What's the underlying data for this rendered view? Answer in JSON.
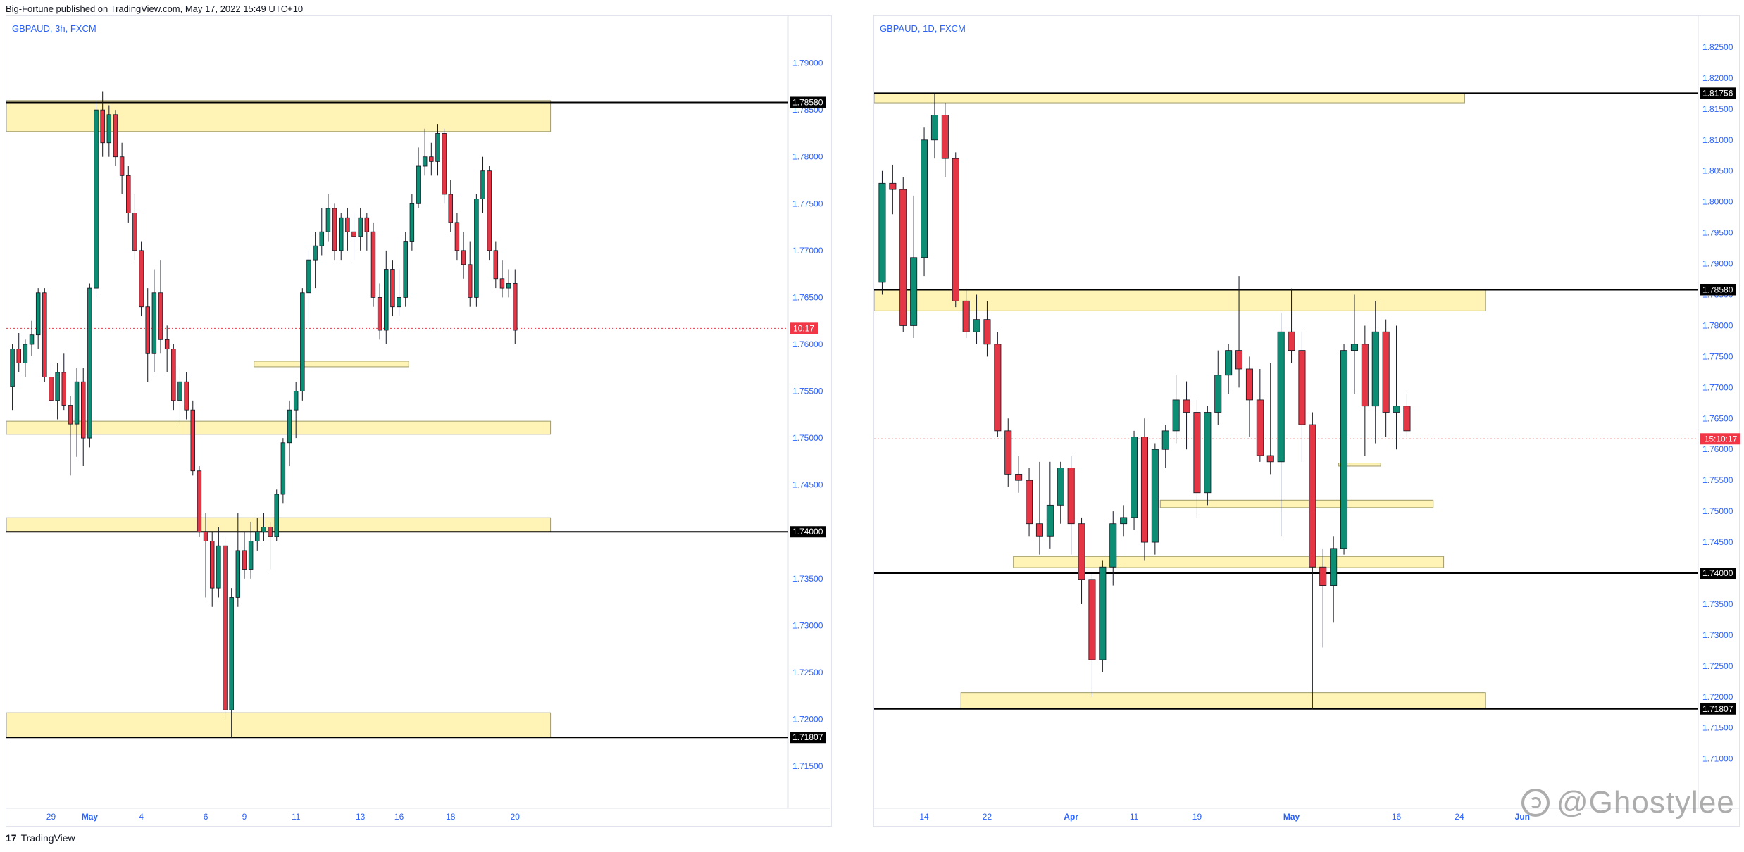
{
  "header": {
    "text": "Big-Fortune published on TradingView.com, May 17, 2022 15:49 UTC+10"
  },
  "footer": {
    "logo": "17",
    "brand": "TradingView"
  },
  "watermark": {
    "text": "@Ghostylee"
  },
  "colors": {
    "up": "#26a69a",
    "upFill": "#0c8d74",
    "down": "#ef5350",
    "downFill": "#e53645",
    "zone": "#fff4b5",
    "zoneStroke": "#9e9b6a",
    "axisText": "#2962ff",
    "labelBg": "#000000",
    "current": "#f23645"
  },
  "chart_data": [
    {
      "type": "candlestick",
      "title": "GBPAUD, 3h, FXCM",
      "ylim": [
        1.7105,
        1.795
      ],
      "yticks": [
        1.79,
        1.785,
        1.78,
        1.775,
        1.77,
        1.765,
        1.76,
        1.755,
        1.75,
        1.745,
        1.74,
        1.735,
        1.73,
        1.725,
        1.72,
        1.715
      ],
      "ytick_labels": [
        "1.79000",
        "1.78500",
        "1.78000",
        "1.77500",
        "1.77000",
        "1.76500",
        "1.76000",
        "1.75500",
        "1.75000",
        "1.74500",
        "1.74000",
        "1.73500",
        "1.73000",
        "1.72500",
        "1.72000",
        "1.71500"
      ],
      "xlabels": [
        {
          "label": "29",
          "bar": 6
        },
        {
          "label": "May",
          "bar": 12,
          "bold": true
        },
        {
          "label": "4",
          "bar": 20
        },
        {
          "label": "6",
          "bar": 30
        },
        {
          "label": "9",
          "bar": 36
        },
        {
          "label": "11",
          "bar": 44
        },
        {
          "label": "13",
          "bar": 54
        },
        {
          "label": "16",
          "bar": 60
        },
        {
          "label": "18",
          "bar": 68
        },
        {
          "label": "20",
          "bar": 78
        }
      ],
      "levels": [
        {
          "price": 1.7858,
          "label": "1.78580"
        },
        {
          "price": 1.74,
          "label": "1.74000"
        },
        {
          "price": 1.71807,
          "label": "1.71807"
        }
      ],
      "current": {
        "price": 1.7617,
        "label": "10:17"
      },
      "zones": [
        {
          "from": -1,
          "to": 84,
          "top": 1.786,
          "bottom": 1.7827
        },
        {
          "from": -1,
          "to": 84,
          "top": 1.7518,
          "bottom": 1.7504
        },
        {
          "from": -1,
          "to": 84,
          "top": 1.7415,
          "bottom": 1.74
        },
        {
          "from": -1,
          "to": 84,
          "top": 1.7207,
          "bottom": 1.71807
        },
        {
          "from": 38,
          "to": 62,
          "top": 1.7582,
          "bottom": 1.7576
        }
      ],
      "candles": [
        [
          1.7555,
          1.76,
          1.753,
          1.7595
        ],
        [
          1.7595,
          1.7612,
          1.757,
          1.758
        ],
        [
          1.758,
          1.7605,
          1.7565,
          1.76
        ],
        [
          1.76,
          1.7625,
          1.7588,
          1.761
        ],
        [
          1.761,
          1.766,
          1.7595,
          1.7655
        ],
        [
          1.7655,
          1.766,
          1.756,
          1.7565
        ],
        [
          1.7565,
          1.758,
          1.753,
          1.754
        ],
        [
          1.754,
          1.758,
          1.752,
          1.757
        ],
        [
          1.757,
          1.759,
          1.753,
          1.7535
        ],
        [
          1.7535,
          1.7545,
          1.746,
          1.7515
        ],
        [
          1.7515,
          1.7575,
          1.748,
          1.756
        ],
        [
          1.756,
          1.7575,
          1.747,
          1.75
        ],
        [
          1.75,
          1.7665,
          1.749,
          1.766
        ],
        [
          1.766,
          1.786,
          1.765,
          1.785
        ],
        [
          1.785,
          1.787,
          1.78,
          1.7815
        ],
        [
          1.7815,
          1.7855,
          1.78,
          1.7845
        ],
        [
          1.7845,
          1.785,
          1.779,
          1.78
        ],
        [
          1.78,
          1.7815,
          1.776,
          1.778
        ],
        [
          1.778,
          1.779,
          1.773,
          1.774
        ],
        [
          1.774,
          1.776,
          1.769,
          1.77
        ],
        [
          1.77,
          1.771,
          1.763,
          1.764
        ],
        [
          1.764,
          1.766,
          1.756,
          1.759
        ],
        [
          1.759,
          1.768,
          1.757,
          1.7655
        ],
        [
          1.7655,
          1.769,
          1.759,
          1.7605
        ],
        [
          1.7605,
          1.762,
          1.757,
          1.7595
        ],
        [
          1.7595,
          1.76,
          1.753,
          1.754
        ],
        [
          1.754,
          1.7575,
          1.7515,
          1.756
        ],
        [
          1.756,
          1.757,
          1.752,
          1.753
        ],
        [
          1.753,
          1.754,
          1.746,
          1.7465
        ],
        [
          1.7465,
          1.747,
          1.7395,
          1.74
        ],
        [
          1.74,
          1.742,
          1.733,
          1.739
        ],
        [
          1.739,
          1.74,
          1.732,
          1.734
        ],
        [
          1.734,
          1.7405,
          1.733,
          1.7385
        ],
        [
          1.7385,
          1.7395,
          1.72,
          1.721
        ],
        [
          1.721,
          1.734,
          1.718,
          1.733
        ],
        [
          1.733,
          1.742,
          1.732,
          1.738
        ],
        [
          1.738,
          1.74,
          1.735,
          1.736
        ],
        [
          1.736,
          1.741,
          1.735,
          1.739
        ],
        [
          1.739,
          1.7415,
          1.738,
          1.74
        ],
        [
          1.74,
          1.742,
          1.739,
          1.7405
        ],
        [
          1.7405,
          1.741,
          1.736,
          1.7395
        ],
        [
          1.7395,
          1.7445,
          1.739,
          1.744
        ],
        [
          1.744,
          1.75,
          1.743,
          1.7495
        ],
        [
          1.7495,
          1.754,
          1.747,
          1.753
        ],
        [
          1.753,
          1.756,
          1.75,
          1.755
        ],
        [
          1.755,
          1.766,
          1.754,
          1.7655
        ],
        [
          1.7655,
          1.77,
          1.762,
          1.769
        ],
        [
          1.769,
          1.772,
          1.766,
          1.7705
        ],
        [
          1.7705,
          1.7745,
          1.7695,
          1.772
        ],
        [
          1.772,
          1.776,
          1.771,
          1.7745
        ],
        [
          1.7745,
          1.775,
          1.769,
          1.77
        ],
        [
          1.77,
          1.774,
          1.769,
          1.7735
        ],
        [
          1.7735,
          1.7745,
          1.77,
          1.772
        ],
        [
          1.772,
          1.774,
          1.769,
          1.7715
        ],
        [
          1.7715,
          1.7745,
          1.77,
          1.7735
        ],
        [
          1.7735,
          1.774,
          1.77,
          1.772
        ],
        [
          1.772,
          1.773,
          1.764,
          1.765
        ],
        [
          1.765,
          1.7665,
          1.7605,
          1.7615
        ],
        [
          1.7615,
          1.77,
          1.76,
          1.768
        ],
        [
          1.768,
          1.769,
          1.763,
          1.764
        ],
        [
          1.764,
          1.768,
          1.763,
          1.765
        ],
        [
          1.765,
          1.772,
          1.764,
          1.771
        ],
        [
          1.771,
          1.776,
          1.77,
          1.775
        ],
        [
          1.775,
          1.781,
          1.7745,
          1.779
        ],
        [
          1.779,
          1.783,
          1.778,
          1.78
        ],
        [
          1.78,
          1.7815,
          1.778,
          1.7795
        ],
        [
          1.7795,
          1.7835,
          1.778,
          1.7825
        ],
        [
          1.7825,
          1.783,
          1.775,
          1.776
        ],
        [
          1.776,
          1.7775,
          1.772,
          1.773
        ],
        [
          1.773,
          1.774,
          1.769,
          1.77
        ],
        [
          1.77,
          1.772,
          1.767,
          1.7685
        ],
        [
          1.7685,
          1.771,
          1.764,
          1.765
        ],
        [
          1.765,
          1.776,
          1.764,
          1.7755
        ],
        [
          1.7755,
          1.78,
          1.774,
          1.7785
        ],
        [
          1.7785,
          1.779,
          1.769,
          1.77
        ],
        [
          1.77,
          1.771,
          1.766,
          1.767
        ],
        [
          1.767,
          1.769,
          1.765,
          1.766
        ],
        [
          1.766,
          1.768,
          1.765,
          1.7665
        ],
        [
          1.7665,
          1.768,
          1.76,
          1.7615
        ]
      ]
    },
    {
      "type": "candlestick",
      "title": "GBPAUD, 1D, FXCM",
      "ylim": [
        1.702,
        1.83
      ],
      "yticks": [
        1.825,
        1.82,
        1.815,
        1.81,
        1.805,
        1.8,
        1.795,
        1.79,
        1.785,
        1.78,
        1.775,
        1.77,
        1.765,
        1.76,
        1.755,
        1.75,
        1.745,
        1.74,
        1.735,
        1.73,
        1.725,
        1.72,
        1.715,
        1.71
      ],
      "ytick_labels": [
        "1.82500",
        "1.82000",
        "1.81500",
        "1.81000",
        "1.80500",
        "1.80000",
        "1.79500",
        "1.79000",
        "1.78500",
        "1.78000",
        "1.77500",
        "1.77000",
        "1.76500",
        "1.76000",
        "1.75500",
        "1.75000",
        "1.74500",
        "1.74000",
        "1.73500",
        "1.73000",
        "1.72500",
        "1.72000",
        "1.71500",
        "1.71000"
      ],
      "xlabels": [
        {
          "label": "14",
          "bar": 4
        },
        {
          "label": "22",
          "bar": 10
        },
        {
          "label": "Apr",
          "bar": 18,
          "bold": true
        },
        {
          "label": "11",
          "bar": 24
        },
        {
          "label": "19",
          "bar": 30
        },
        {
          "label": "May",
          "bar": 39,
          "bold": true
        },
        {
          "label": "16",
          "bar": 49
        },
        {
          "label": "24",
          "bar": 55
        },
        {
          "label": "Jun",
          "bar": 61,
          "bold": true
        }
      ],
      "levels": [
        {
          "price": 1.81756,
          "label": "1.81756"
        },
        {
          "price": 1.7858,
          "label": "1.78580"
        },
        {
          "price": 1.74,
          "label": "1.74000"
        },
        {
          "price": 1.71807,
          "label": "1.71807"
        }
      ],
      "current": {
        "price": 1.7617,
        "label": "15:10:17"
      },
      "zones": [
        {
          "from": -1,
          "to": 56,
          "top": 1.81756,
          "bottom": 1.816
        },
        {
          "from": -1,
          "to": 58,
          "top": 1.7858,
          "bottom": 1.7824
        },
        {
          "from": 8,
          "to": 58,
          "top": 1.7207,
          "bottom": 1.71807
        },
        {
          "from": 13,
          "to": 54,
          "top": 1.7427,
          "bottom": 1.7409
        },
        {
          "from": 27,
          "to": 53,
          "top": 1.7518,
          "bottom": 1.7506
        },
        {
          "from": 44,
          "to": 48,
          "top": 1.7578,
          "bottom": 1.7573
        }
      ],
      "candles": [
        [
          1.787,
          1.805,
          1.785,
          1.803
        ],
        [
          1.803,
          1.806,
          1.798,
          1.802
        ],
        [
          1.802,
          1.804,
          1.779,
          1.78
        ],
        [
          1.78,
          1.801,
          1.778,
          1.791
        ],
        [
          1.791,
          1.812,
          1.788,
          1.81
        ],
        [
          1.81,
          1.8175,
          1.807,
          1.814
        ],
        [
          1.814,
          1.816,
          1.804,
          1.807
        ],
        [
          1.807,
          1.808,
          1.783,
          1.784
        ],
        [
          1.784,
          1.786,
          1.778,
          1.779
        ],
        [
          1.779,
          1.785,
          1.777,
          1.781
        ],
        [
          1.781,
          1.784,
          1.775,
          1.777
        ],
        [
          1.777,
          1.779,
          1.762,
          1.763
        ],
        [
          1.763,
          1.765,
          1.754,
          1.756
        ],
        [
          1.756,
          1.759,
          1.753,
          1.755
        ],
        [
          1.755,
          1.757,
          1.746,
          1.748
        ],
        [
          1.748,
          1.758,
          1.743,
          1.746
        ],
        [
          1.746,
          1.758,
          1.744,
          1.751
        ],
        [
          1.751,
          1.758,
          1.748,
          1.757
        ],
        [
          1.757,
          1.759,
          1.743,
          1.748
        ],
        [
          1.748,
          1.749,
          1.735,
          1.739
        ],
        [
          1.739,
          1.74,
          1.72,
          1.726
        ],
        [
          1.726,
          1.742,
          1.724,
          1.741
        ],
        [
          1.741,
          1.75,
          1.738,
          1.748
        ],
        [
          1.748,
          1.751,
          1.746,
          1.749
        ],
        [
          1.749,
          1.763,
          1.747,
          1.762
        ],
        [
          1.762,
          1.765,
          1.742,
          1.745
        ],
        [
          1.745,
          1.761,
          1.743,
          1.76
        ],
        [
          1.76,
          1.764,
          1.757,
          1.763
        ],
        [
          1.763,
          1.772,
          1.761,
          1.768
        ],
        [
          1.768,
          1.771,
          1.76,
          1.766
        ],
        [
          1.766,
          1.768,
          1.749,
          1.753
        ],
        [
          1.753,
          1.767,
          1.751,
          1.766
        ],
        [
          1.766,
          1.776,
          1.764,
          1.772
        ],
        [
          1.772,
          1.777,
          1.769,
          1.776
        ],
        [
          1.776,
          1.788,
          1.77,
          1.773
        ],
        [
          1.773,
          1.775,
          1.762,
          1.768
        ],
        [
          1.768,
          1.773,
          1.758,
          1.759
        ],
        [
          1.759,
          1.774,
          1.756,
          1.758
        ],
        [
          1.758,
          1.782,
          1.746,
          1.779
        ],
        [
          1.779,
          1.786,
          1.774,
          1.776
        ],
        [
          1.776,
          1.779,
          1.758,
          1.764
        ],
        [
          1.764,
          1.766,
          1.718,
          1.741
        ],
        [
          1.741,
          1.744,
          1.728,
          1.738
        ],
        [
          1.738,
          1.746,
          1.732,
          1.744
        ],
        [
          1.744,
          1.777,
          1.743,
          1.776
        ],
        [
          1.776,
          1.785,
          1.769,
          1.777
        ],
        [
          1.777,
          1.78,
          1.759,
          1.767
        ],
        [
          1.767,
          1.784,
          1.761,
          1.779
        ],
        [
          1.779,
          1.781,
          1.762,
          1.766
        ],
        [
          1.766,
          1.78,
          1.76,
          1.767
        ],
        [
          1.767,
          1.769,
          1.762,
          1.763
        ]
      ]
    }
  ]
}
